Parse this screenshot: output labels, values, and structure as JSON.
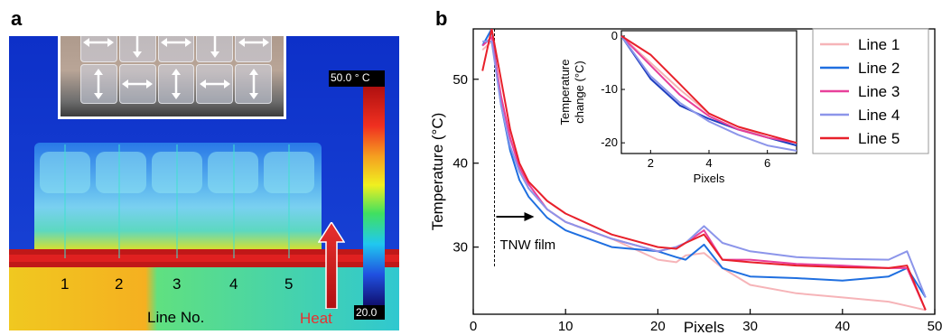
{
  "panels": {
    "a": "a",
    "b": "b"
  },
  "thermal": {
    "colorbar_max": "50.0 ° C",
    "colorbar_min": "20.0",
    "line_numbers": [
      "1",
      "2",
      "3",
      "4",
      "5"
    ],
    "xlabel": "Line No.",
    "heat_label": "Heat",
    "arrows": [
      "h",
      "v",
      "h",
      "v",
      "h",
      "v",
      "h",
      "v",
      "h",
      "v"
    ]
  },
  "chart_data": {
    "type": "line",
    "xlabel": "Pixels",
    "ylabel": "Temperature (°C)",
    "xlim": [
      0,
      50
    ],
    "ylim": [
      22,
      56
    ],
    "xticks": [
      0,
      10,
      20,
      30,
      40,
      50
    ],
    "yticks": [
      30,
      40,
      50
    ],
    "annotation": "TNW film",
    "marker_x": 2.3,
    "legend_position": "top-right",
    "series": [
      {
        "name": "Line 1",
        "color": "#f6b4b8",
        "x": [
          1,
          2,
          3,
          4,
          5,
          6,
          8,
          10,
          15,
          20,
          22,
          23,
          25,
          27,
          30,
          35,
          40,
          45,
          47,
          49
        ],
        "y": [
          53.5,
          54.5,
          48,
          43,
          39.5,
          37,
          34.5,
          33,
          31,
          28.5,
          28.2,
          29,
          29.3,
          27.5,
          25.5,
          24.5,
          24,
          23.5,
          23,
          22.5
        ]
      },
      {
        "name": "Line 2",
        "color": "#1f6fe0",
        "x": [
          1,
          2,
          3,
          4,
          5,
          6,
          8,
          10,
          15,
          20,
          22,
          23,
          25,
          27,
          30,
          35,
          40,
          45,
          47,
          49
        ],
        "y": [
          54,
          56,
          47,
          41.5,
          38,
          36,
          33.5,
          32,
          30,
          29.5,
          28.8,
          28.5,
          30.3,
          27.5,
          26.5,
          26.3,
          26,
          26.5,
          27.5,
          24
        ]
      },
      {
        "name": "Line 3",
        "color": "#e8409a",
        "x": [
          1,
          2,
          3,
          4,
          5,
          6,
          8,
          10,
          15,
          20,
          22,
          23,
          25,
          27,
          30,
          35,
          40,
          45,
          47,
          49
        ],
        "y": [
          54,
          55,
          48,
          43,
          39.5,
          37.5,
          34.5,
          33,
          31,
          29.5,
          30,
          30.5,
          32,
          28.5,
          28.5,
          28,
          27.8,
          27.5,
          27.5,
          22.5
        ]
      },
      {
        "name": "Line 4",
        "color": "#8c95ea",
        "x": [
          1,
          2,
          3,
          4,
          5,
          6,
          8,
          10,
          15,
          20,
          22,
          23,
          25,
          27,
          30,
          35,
          40,
          45,
          47,
          49
        ],
        "y": [
          54.5,
          54.5,
          47,
          42,
          39,
          37,
          34.5,
          33,
          31,
          29.5,
          30,
          30.5,
          32.5,
          30.5,
          29.5,
          28.8,
          28.6,
          28.5,
          29.5,
          24
        ]
      },
      {
        "name": "Line 5",
        "color": "#e8202a",
        "x": [
          1,
          2,
          3,
          4,
          5,
          6,
          8,
          10,
          15,
          20,
          22,
          23,
          25,
          27,
          30,
          35,
          40,
          45,
          47,
          49
        ],
        "y": [
          51,
          56,
          50,
          44,
          40,
          37.8,
          35.5,
          34,
          31.5,
          30,
          29.8,
          30.5,
          31.5,
          28.5,
          28.2,
          27.8,
          27.6,
          27.5,
          27.8,
          22.5
        ]
      }
    ],
    "inset": {
      "xlabel": "Pixels",
      "ylabel_line1": "Temperature",
      "ylabel_line2": "change (°C)",
      "xlim": [
        1,
        7
      ],
      "ylim": [
        -22,
        1
      ],
      "xticks": [
        2,
        4,
        6
      ],
      "yticks": [
        0,
        -10,
        -20
      ],
      "series": [
        {
          "name": "Line 1",
          "color": "#f6b4b8",
          "x": [
            1,
            2,
            3,
            4,
            5,
            6,
            7
          ],
          "y": [
            0,
            -5,
            -10,
            -14.5,
            -17,
            -19,
            -20
          ]
        },
        {
          "name": "Line 2",
          "color": "#1f3fbf",
          "x": [
            1,
            2,
            3,
            4,
            5,
            6,
            7
          ],
          "y": [
            0,
            -8,
            -13,
            -15.5,
            -17.5,
            -19,
            -20.5
          ]
        },
        {
          "name": "Line 3",
          "color": "#e8409a",
          "x": [
            1,
            2,
            3,
            4,
            5,
            6,
            7
          ],
          "y": [
            0,
            -5.5,
            -11,
            -15,
            -17.5,
            -19,
            -20
          ]
        },
        {
          "name": "Line 4",
          "color": "#8c95ea",
          "x": [
            1,
            2,
            3,
            4,
            5,
            6,
            7
          ],
          "y": [
            0,
            -7.5,
            -12.5,
            -16,
            -18.5,
            -20.5,
            -21.5
          ]
        },
        {
          "name": "Line 5",
          "color": "#e8202a",
          "x": [
            1,
            2,
            3,
            4,
            5,
            6,
            7
          ],
          "y": [
            0,
            -3.5,
            -9,
            -14.5,
            -17,
            -18.5,
            -20
          ]
        }
      ]
    }
  }
}
